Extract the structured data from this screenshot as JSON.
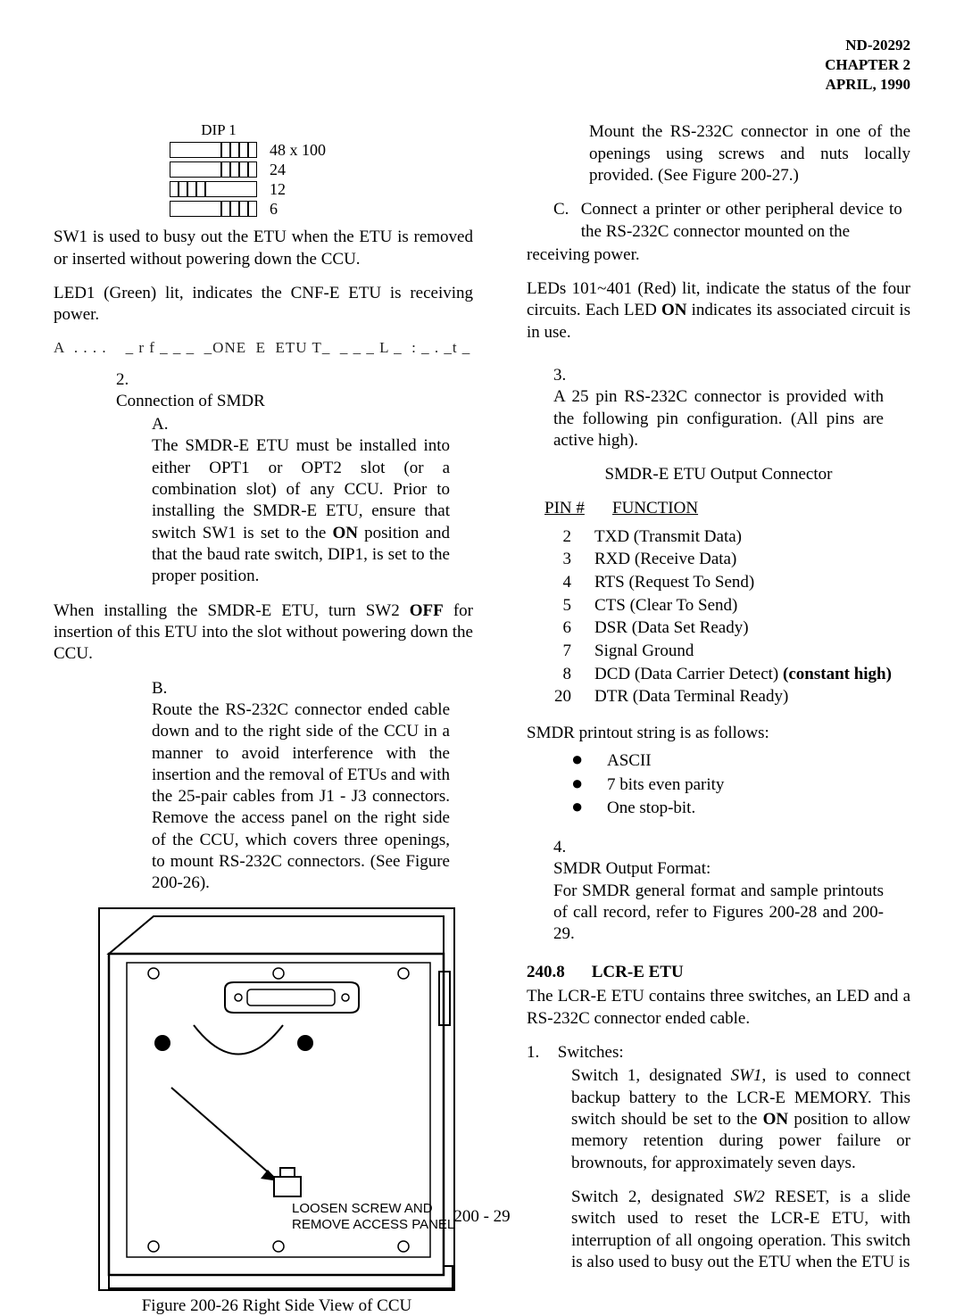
{
  "header": {
    "doc_id": "ND-20292",
    "chapter": "CHAPTER 2",
    "date": "APRIL, 1990"
  },
  "dip": {
    "label": "DIP 1",
    "rows": [
      {
        "pattern": "right",
        "value": "48 x 100"
      },
      {
        "pattern": "right",
        "value": "24"
      },
      {
        "pattern": "left",
        "value": "12"
      },
      {
        "pattern": "right",
        "value": "6"
      }
    ]
  },
  "left": {
    "p1": "SW1 is used to busy out the ETU when the ETU is removed or inserted without powering down the CCU.",
    "p2": "LED1 (Green) lit, indicates the CNF-E ETU is receiving power.",
    "broken": "A  . . . .    _ r f _ _ _  _ONE  E  ETU T_  _ _ _ L _  : _ . _t _ : l _ _ l :  _  _",
    "item2_num": "2.",
    "item2_title": "Connection of SMDR",
    "item2A_let": "A.",
    "item2A": "The SMDR-E ETU must be installed into either OPT1 or OPT2 slot (or a combination slot) of any CCU.  Prior to installing the SMDR-E ETU, ensure that switch SW1 is set to the ON position and that the baud rate switch, DIP1, is set to the proper position.",
    "p_when": "When installing the SMDR-E ETU, turn SW2 OFF for insertion of this ETU into the slot without powering down the CCU.",
    "item2B_let": "B.",
    "item2B": "Route the RS-232C connector ended cable down and to the right side of the CCU in a manner to avoid interference with the insertion and the removal of ETUs and with the 25-pair cables from J1 - J3 connectors. Remove the access panel on the right side of the CCU, which covers three openings, to mount RS-232C connectors.  (See Figure 200-26).",
    "fig_label1": "LOOSEN SCREW AND",
    "fig_label2": "REMOVE ACCESS PANEL",
    "fig_caption": "Figure 200-26    Right Side View of CCU"
  },
  "right": {
    "p_mount": "Mount the RS-232C connector in one of the openings using screws and nuts locally provided. (See Figure 200-27.)",
    "itemC_let": "C.",
    "itemC": "Connect a printer or other peripheral device to the RS-232C connector mounted on the",
    "p_recv": "receiving power.",
    "p_leds": "LEDs 101~401 (Red) lit, indicate the status of the four circuits.  Each LED ON indicates its associated circuit is in use.",
    "item3_num": "3.",
    "item3": "A 25 pin RS-232C connector is provided with the following pin configuration. (All pins are active high).",
    "conn_title": "SMDR-E ETU Output Connector",
    "pin_head_n": "PIN #",
    "pin_head_f": "FUNCTION",
    "pins": [
      {
        "n": "2",
        "f": "TXD (Transmit Data)"
      },
      {
        "n": "3",
        "f": "RXD (Receive Data)"
      },
      {
        "n": "4",
        "f": "RTS (Request To Send)"
      },
      {
        "n": "5",
        "f": "CTS (Clear To Send)"
      },
      {
        "n": "6",
        "f": "DSR (Data Set Ready)"
      },
      {
        "n": "7",
        "f": "Signal Ground"
      },
      {
        "n": "8",
        "f": "DCD (Data Carrier Detect) (constant high)"
      },
      {
        "n": "20",
        "f": "DTR (Data Terminal Ready)"
      }
    ],
    "p_smdr_print": "SMDR printout string is as follows:",
    "bullets": [
      "ASCII",
      "7 bits even parity",
      "One stop-bit."
    ],
    "item4_num": "4.",
    "item4_title": "SMDR Output Format:",
    "item4_body": "For SMDR general format and sample printouts of call record, refer to Figures 200-28 and 200-29.",
    "sect_num": "240.8",
    "sect_title": "LCR-E ETU",
    "p_lcr": "The LCR-E ETU contains three switches, an LED and a RS-232C connector ended cable.",
    "sw_num": "1.",
    "sw_title": "Switches:",
    "sw1": "Switch 1, designated SW1, is used to connect backup battery to the LCR-E MEMORY.  This switch should be set to the ON position to allow memory retention during power failure or brownouts, for approximately seven days.",
    "sw2": "Switch 2, designated SW2 RESET, is a slide switch used to reset the LCR-E ETU, with interruption of all ongoing operation.  This switch is also used to busy out the ETU when the ETU is"
  },
  "page_num": "200 - 29"
}
